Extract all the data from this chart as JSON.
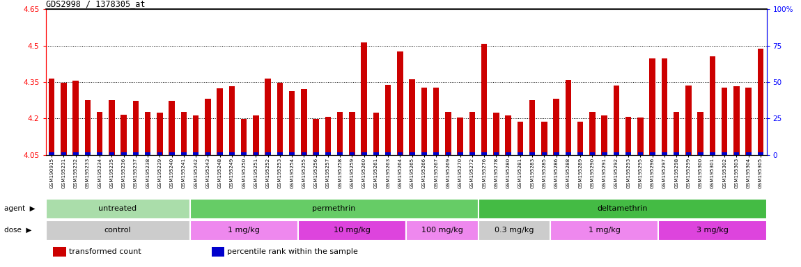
{
  "title": "GDS2998 / 1378305_at",
  "samples": [
    "GSM190915",
    "GSM195231",
    "GSM195232",
    "GSM195233",
    "GSM195234",
    "GSM195235",
    "GSM195236",
    "GSM195237",
    "GSM195238",
    "GSM195239",
    "GSM195240",
    "GSM195241",
    "GSM195242",
    "GSM195243",
    "GSM195248",
    "GSM195249",
    "GSM195250",
    "GSM195251",
    "GSM195252",
    "GSM195253",
    "GSM195254",
    "GSM195255",
    "GSM195256",
    "GSM195257",
    "GSM195258",
    "GSM195259",
    "GSM195260",
    "GSM195261",
    "GSM195263",
    "GSM195264",
    "GSM195265",
    "GSM195266",
    "GSM195267",
    "GSM195269",
    "GSM195270",
    "GSM195272",
    "GSM195276",
    "GSM195278",
    "GSM195280",
    "GSM195281",
    "GSM195283",
    "GSM195285",
    "GSM195286",
    "GSM195288",
    "GSM195289",
    "GSM195290",
    "GSM195291",
    "GSM195292",
    "GSM195293",
    "GSM195295",
    "GSM195296",
    "GSM195297",
    "GSM195298",
    "GSM195299",
    "GSM195300",
    "GSM195301",
    "GSM195302",
    "GSM195303",
    "GSM195304",
    "GSM195305"
  ],
  "red_values": [
    4.365,
    4.348,
    4.356,
    4.275,
    4.228,
    4.275,
    4.215,
    4.272,
    4.228,
    4.225,
    4.272,
    4.228,
    4.212,
    4.282,
    4.325,
    4.332,
    4.198,
    4.212,
    4.365,
    4.348,
    4.312,
    4.322,
    4.198,
    4.208,
    4.228,
    4.228,
    4.515,
    4.225,
    4.338,
    4.475,
    4.362,
    4.328,
    4.328,
    4.228,
    4.205,
    4.228,
    4.508,
    4.225,
    4.212,
    4.188,
    4.275,
    4.188,
    4.282,
    4.358,
    4.188,
    4.228,
    4.212,
    4.335,
    4.208,
    4.205,
    4.448,
    4.448,
    4.228,
    4.335,
    4.228,
    4.455,
    4.328,
    4.332,
    4.328,
    4.488
  ],
  "blue_values": [
    3,
    4,
    5,
    3,
    3,
    4,
    3,
    3,
    3,
    3,
    4,
    3,
    3,
    3,
    3,
    3,
    3,
    3,
    4,
    5,
    3,
    3,
    3,
    3,
    3,
    3,
    5,
    3,
    4,
    5,
    4,
    4,
    3,
    3,
    3,
    3,
    5,
    3,
    3,
    3,
    4,
    3,
    3,
    5,
    3,
    3,
    3,
    4,
    3,
    3,
    5,
    5,
    3,
    4,
    3,
    5,
    4,
    4,
    4,
    5
  ],
  "ymin": 4.05,
  "ymax": 4.65,
  "yticks_left": [
    4.05,
    4.2,
    4.35,
    4.5,
    4.65
  ],
  "yticks_right": [
    0,
    25,
    50,
    75,
    100
  ],
  "hlines": [
    4.2,
    4.35,
    4.5
  ],
  "bar_color": "#cc0000",
  "blue_color": "#0000cc",
  "agent_groups": [
    {
      "label": "untreated",
      "start": 0,
      "end": 12,
      "color": "#aaddaa"
    },
    {
      "label": "permethrin",
      "start": 12,
      "end": 36,
      "color": "#66cc66"
    },
    {
      "label": "deltamethrin",
      "start": 36,
      "end": 60,
      "color": "#44bb44"
    }
  ],
  "dose_groups": [
    {
      "label": "control",
      "start": 0,
      "end": 12,
      "color": "#cccccc"
    },
    {
      "label": "1 mg/kg",
      "start": 12,
      "end": 21,
      "color": "#ee88ee"
    },
    {
      "label": "10 mg/kg",
      "start": 21,
      "end": 30,
      "color": "#dd44dd"
    },
    {
      "label": "100 mg/kg",
      "start": 30,
      "end": 36,
      "color": "#ee88ee"
    },
    {
      "label": "0.3 mg/kg",
      "start": 36,
      "end": 42,
      "color": "#cccccc"
    },
    {
      "label": "1 mg/kg",
      "start": 42,
      "end": 51,
      "color": "#ee88ee"
    },
    {
      "label": "3 mg/kg",
      "start": 51,
      "end": 60,
      "color": "#dd44dd"
    }
  ]
}
